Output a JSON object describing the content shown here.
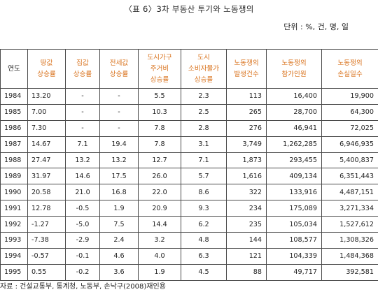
{
  "title": "〈표 6〉3차 부동산 투기와 노동쟁의",
  "unit": "단위 : %, 건, 명, 일",
  "columns": [
    [
      "연도"
    ],
    [
      "땅값",
      "상승률"
    ],
    [
      "집값",
      "상승률"
    ],
    [
      "전세값",
      "상승률"
    ],
    [
      "도시가구",
      "주거비",
      "상승률"
    ],
    [
      "도시",
      "소비자물가",
      "상승률"
    ],
    [
      "노동쟁의",
      "발생건수"
    ],
    [
      "노동쟁의",
      "참가인원"
    ],
    [
      "노동쟁의",
      "손실일수"
    ]
  ],
  "rows": [
    [
      "1984",
      "13.20",
      "-",
      "-",
      "5.5",
      "2.3",
      "113",
      "16,400",
      "19,900"
    ],
    [
      "1985",
      "7.00",
      "-",
      "-",
      "10.3",
      "2.5",
      "265",
      "28,700",
      "64,300"
    ],
    [
      "1986",
      "7.30",
      "-",
      "-",
      "7.8",
      "2.8",
      "276",
      "46,941",
      "72,025"
    ],
    [
      "1987",
      "14.67",
      "7.1",
      "19.4",
      "7.8",
      "3.1",
      "3,749",
      "1,262,285",
      "6,946,935"
    ],
    [
      "1988",
      "27.47",
      "13.2",
      "13.2",
      "12.7",
      "7.1",
      "1,873",
      "293,455",
      "5,400,837"
    ],
    [
      "1989",
      "31.97",
      "14.6",
      "17.5",
      "26.0",
      "5.7",
      "1,616",
      "409,134",
      "6,351,443"
    ],
    [
      "1990",
      "20.58",
      "21.0",
      "16.8",
      "22.0",
      "8.6",
      "322",
      "133,916",
      "4,487,151"
    ],
    [
      "1991",
      "12.78",
      "-0.5",
      "1.9",
      "20.9",
      "9.3",
      "234",
      "175,089",
      "3,271,334"
    ],
    [
      "1992",
      "-1.27",
      "-5.0",
      "7.5",
      "14.4",
      "6.2",
      "235",
      "105,034",
      "1,527,612"
    ],
    [
      "1993",
      "-7.38",
      "-2.9",
      "2.4",
      "3.2",
      "4.8",
      "144",
      "108,577",
      "1,308,326"
    ],
    [
      "1994",
      "-0.57",
      "-0.1",
      "4.6",
      "4.0",
      "6.3",
      "121",
      "104,339",
      "1,484,368"
    ],
    [
      "1995",
      "0.55",
      "-0.2",
      "3.6",
      "1.9",
      "4.5",
      "88",
      "49,717",
      "392,581"
    ]
  ],
  "source": "자료 : 건설교통부, 통계청, 노동부, 손낙구(2008)재인용",
  "colors": {
    "header_text": "#d9721c",
    "border": "#4a4a4a"
  }
}
